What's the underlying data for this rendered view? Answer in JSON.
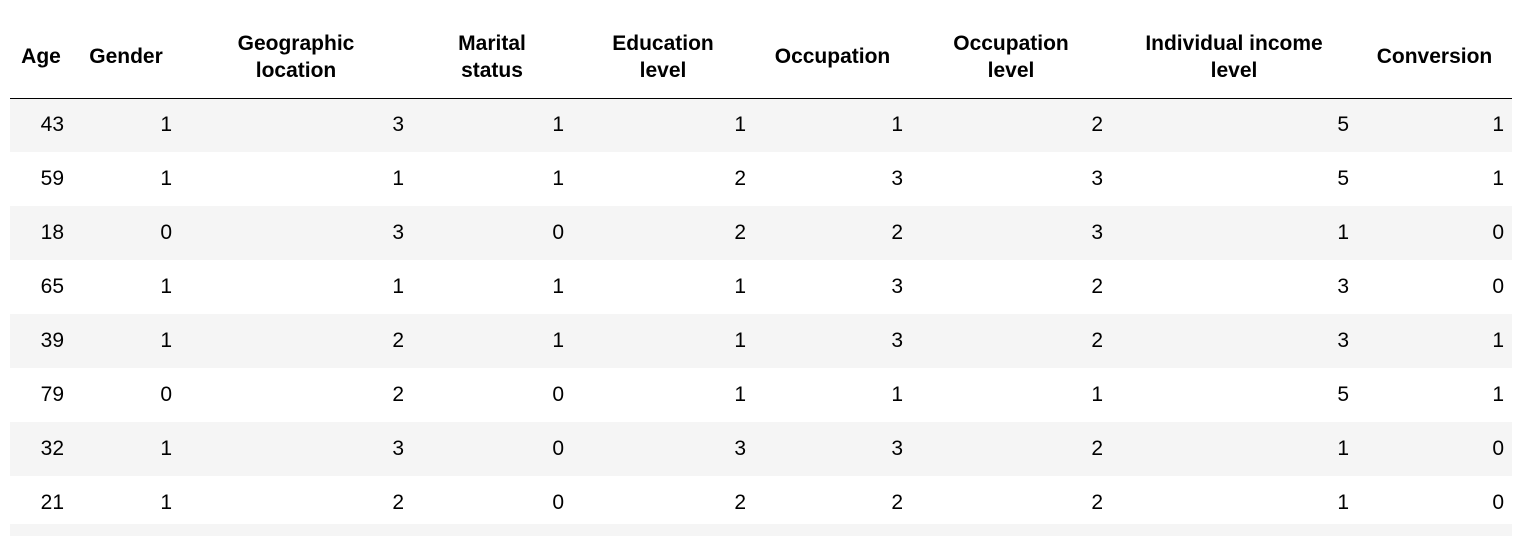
{
  "table": {
    "columns": [
      "Age",
      "Gender",
      "Geographic location",
      "Marital status",
      "Education level",
      "Occupation",
      "Occupation level",
      "Individual income level",
      "Conversion"
    ],
    "rows": [
      [
        "43",
        "1",
        "3",
        "1",
        "1",
        "1",
        "2",
        "5",
        "1"
      ],
      [
        "59",
        "1",
        "1",
        "1",
        "2",
        "3",
        "3",
        "5",
        "1"
      ],
      [
        "18",
        "0",
        "3",
        "0",
        "2",
        "2",
        "3",
        "1",
        "0"
      ],
      [
        "65",
        "1",
        "1",
        "1",
        "1",
        "3",
        "2",
        "3",
        "0"
      ],
      [
        "39",
        "1",
        "2",
        "1",
        "1",
        "3",
        "2",
        "3",
        "1"
      ],
      [
        "79",
        "0",
        "2",
        "0",
        "1",
        "1",
        "1",
        "5",
        "1"
      ],
      [
        "32",
        "1",
        "3",
        "0",
        "3",
        "3",
        "2",
        "1",
        "0"
      ],
      [
        "21",
        "1",
        "2",
        "0",
        "2",
        "2",
        "2",
        "1",
        "0"
      ]
    ]
  }
}
